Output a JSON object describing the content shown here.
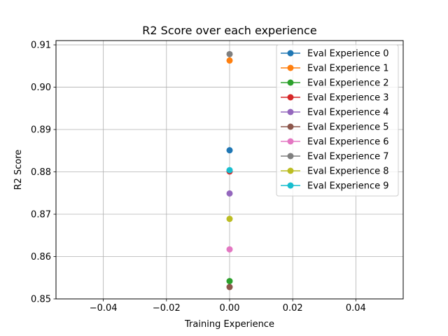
{
  "chart_data": {
    "type": "scatter",
    "title": "R2 Score over each experience",
    "xlabel": "Training Experience",
    "ylabel": "R2 Score",
    "xlim": [
      -0.055,
      0.055
    ],
    "ylim": [
      0.85,
      0.911
    ],
    "x_ticks": [
      -0.04,
      -0.02,
      0.0,
      0.02,
      0.04
    ],
    "x_tick_labels": [
      "−0.04",
      "−0.02",
      "0.00",
      "0.02",
      "0.04"
    ],
    "y_ticks": [
      0.85,
      0.86,
      0.87,
      0.88,
      0.89,
      0.9,
      0.91
    ],
    "y_tick_labels": [
      "0.85",
      "0.86",
      "0.87",
      "0.88",
      "0.89",
      "0.90",
      "0.91"
    ],
    "grid": true,
    "legend_position": "top-right",
    "series": [
      {
        "name": "Eval Experience 0",
        "color": "#1f77b4",
        "x": [
          0
        ],
        "values": [
          0.8851
        ]
      },
      {
        "name": "Eval Experience 1",
        "color": "#ff7f0e",
        "x": [
          0
        ],
        "values": [
          0.9063
        ]
      },
      {
        "name": "Eval Experience 2",
        "color": "#2ca02c",
        "x": [
          0
        ],
        "values": [
          0.8542
        ]
      },
      {
        "name": "Eval Experience 3",
        "color": "#d62728",
        "x": [
          0
        ],
        "values": [
          0.8801
        ]
      },
      {
        "name": "Eval Experience 4",
        "color": "#9467bd",
        "x": [
          0
        ],
        "values": [
          0.8749
        ]
      },
      {
        "name": "Eval Experience 5",
        "color": "#8c564b",
        "x": [
          0
        ],
        "values": [
          0.8528
        ]
      },
      {
        "name": "Eval Experience 6",
        "color": "#e377c2",
        "x": [
          0
        ],
        "values": [
          0.8617
        ]
      },
      {
        "name": "Eval Experience 7",
        "color": "#7f7f7f",
        "x": [
          0
        ],
        "values": [
          0.9078
        ]
      },
      {
        "name": "Eval Experience 8",
        "color": "#bcbd22",
        "x": [
          0
        ],
        "values": [
          0.8689
        ]
      },
      {
        "name": "Eval Experience 9",
        "color": "#17becf",
        "x": [
          0
        ],
        "values": [
          0.8804
        ]
      }
    ]
  }
}
